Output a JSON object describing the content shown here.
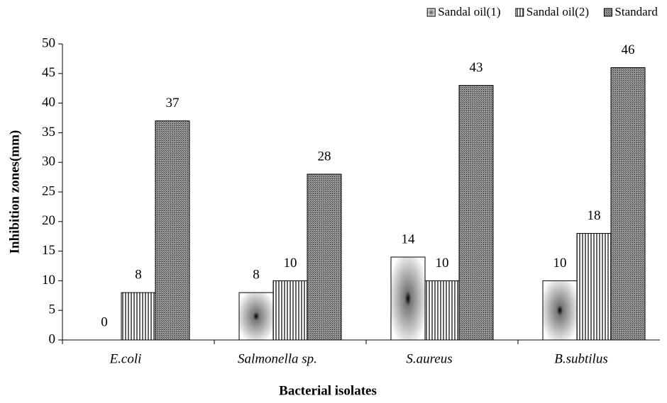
{
  "chart_data": {
    "type": "bar",
    "xlabel": "Bacterial isolates",
    "ylabel": "Inhibition zones(mm)",
    "categories": [
      "E.coli",
      "Salmonella sp.",
      "S.aureus",
      "B.subtilus"
    ],
    "series": [
      {
        "name": "Sandal oil(1)",
        "color": "#444444",
        "values": [
          0,
          8,
          14,
          10
        ]
      },
      {
        "name": "Sandal oil(2)",
        "color": "#777777",
        "values": [
          8,
          10,
          10,
          18
        ]
      },
      {
        "name": "Standard",
        "color": "#555555",
        "values": [
          37,
          28,
          43,
          46
        ]
      }
    ],
    "ylim": [
      0,
      50
    ],
    "yticks": [
      0,
      5,
      10,
      15,
      20,
      25,
      30,
      35,
      40,
      45,
      50
    ],
    "legend": "top-right"
  }
}
